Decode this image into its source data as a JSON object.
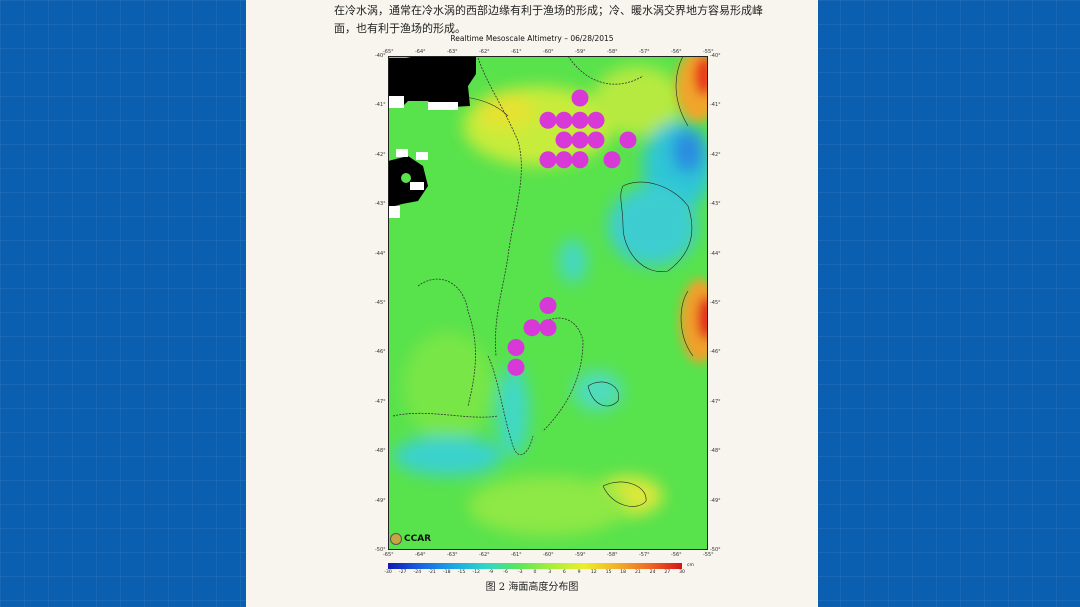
{
  "document": {
    "paragraph": "在冷水涡，通常在冷水涡的西部边缘有利于渔场的形成；冷、暖水涡交界地方容易形成峰面，也有利于渔场的形成。",
    "figure_caption": "图 2  海面高度分布图"
  },
  "map": {
    "title": "Realtime Mesoscale Altimetry – 06/28/2015",
    "lon_labels": [
      "-65°",
      "-64°",
      "-63°",
      "-62°",
      "-61°",
      "-60°",
      "-59°",
      "-58°",
      "-57°",
      "-56°",
      "-55°"
    ],
    "lat_labels": [
      "-40°",
      "-41°",
      "-42°",
      "-43°",
      "-44°",
      "-45°",
      "-46°",
      "-47°",
      "-48°",
      "-49°",
      "-50°"
    ],
    "logo_text": "CCAR",
    "fishing_points_color": "#d838d8",
    "fishing_points": [
      {
        "lon": -59.0,
        "lat": -40.85
      },
      {
        "lon": -60.0,
        "lat": -41.3
      },
      {
        "lon": -59.5,
        "lat": -41.3
      },
      {
        "lon": -59.0,
        "lat": -41.3
      },
      {
        "lon": -58.5,
        "lat": -41.3
      },
      {
        "lon": -59.5,
        "lat": -41.7
      },
      {
        "lon": -59.0,
        "lat": -41.7
      },
      {
        "lon": -58.5,
        "lat": -41.7
      },
      {
        "lon": -57.5,
        "lat": -41.7
      },
      {
        "lon": -60.0,
        "lat": -42.1
      },
      {
        "lon": -59.5,
        "lat": -42.1
      },
      {
        "lon": -59.0,
        "lat": -42.1
      },
      {
        "lon": -58.0,
        "lat": -42.1
      },
      {
        "lon": -60.0,
        "lat": -45.05
      },
      {
        "lon": -60.0,
        "lat": -45.5
      },
      {
        "lon": -60.5,
        "lat": -45.5
      },
      {
        "lon": -61.0,
        "lat": -45.9
      },
      {
        "lon": -61.0,
        "lat": -46.3
      }
    ]
  },
  "colorbar": {
    "ticks": [
      "-30",
      "-27",
      "-24",
      "-21",
      "-18",
      "-15",
      "-12",
      "-9",
      "-6",
      "-3",
      "0",
      "3",
      "6",
      "9",
      "12",
      "15",
      "18",
      "21",
      "24",
      "27",
      "30"
    ],
    "unit": "cm",
    "colors": [
      "#1018b0",
      "#1b63e0",
      "#1aa6e6",
      "#2fd6c8",
      "#5ae65a",
      "#a8ee3c",
      "#ecee2c",
      "#f2b22a",
      "#ee6a22",
      "#d4141a"
    ]
  }
}
